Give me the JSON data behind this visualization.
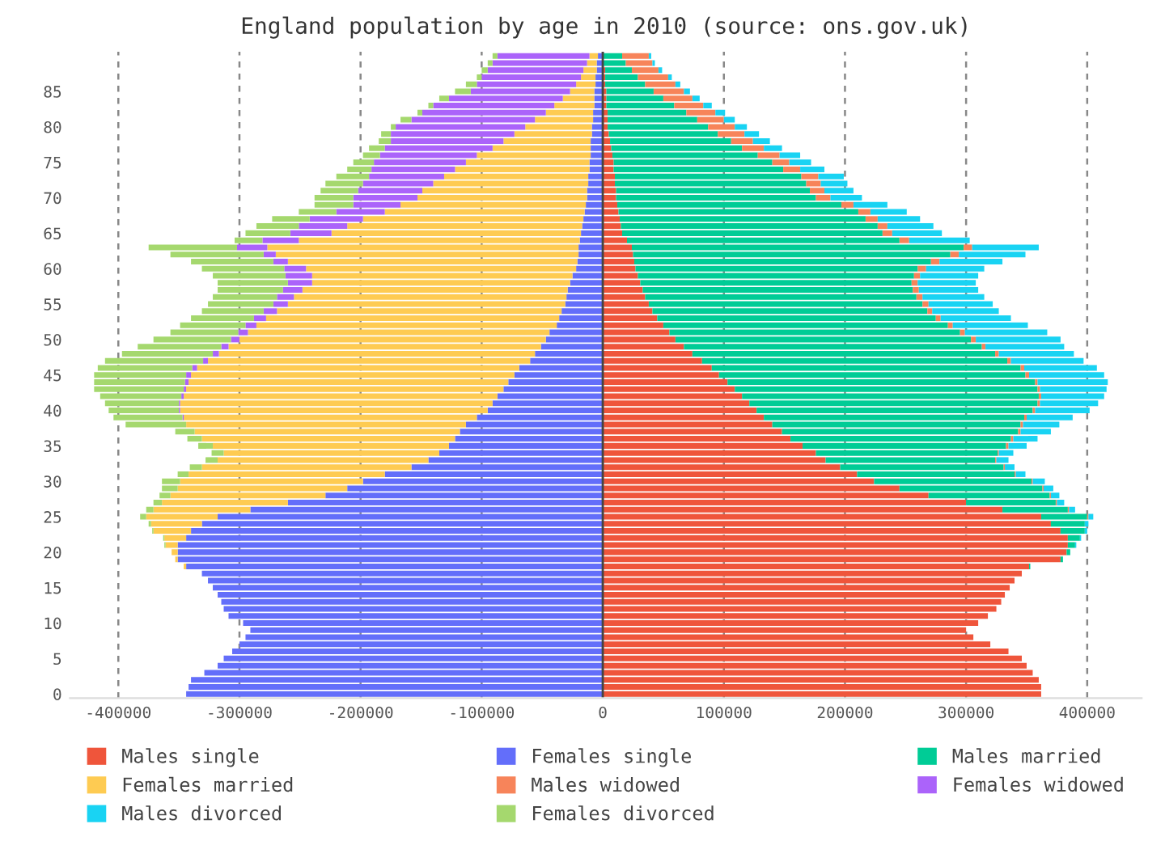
{
  "chart_data": {
    "type": "bar",
    "orientation": "horizontal",
    "stacked": true,
    "title": "England population by age in 2010 (source: ons.gov.uk)",
    "categories": [
      null,
      null,
      null,
      null,
      null,
      "85",
      null,
      null,
      null,
      null,
      "80",
      null,
      null,
      null,
      null,
      "75",
      null,
      null,
      null,
      null,
      "70",
      null,
      null,
      null,
      null,
      "65",
      null,
      null,
      null,
      null,
      "60",
      null,
      null,
      null,
      null,
      "55",
      null,
      null,
      null,
      null,
      "50",
      null,
      null,
      null,
      null,
      "45",
      null,
      null,
      null,
      null,
      "40",
      null,
      null,
      null,
      null,
      "35",
      null,
      null,
      null,
      null,
      "30",
      null,
      null,
      null,
      null,
      "25",
      null,
      null,
      null,
      null,
      "20",
      null,
      null,
      null,
      null,
      "15",
      null,
      null,
      null,
      null,
      "10",
      null,
      null,
      null,
      null,
      "5",
      null,
      null,
      null,
      null,
      "0"
    ],
    "xlim": [
      -440000,
      445000
    ],
    "xticks": [
      -400000,
      -300000,
      -200000,
      -100000,
      0,
      100000,
      200000,
      300000,
      400000
    ],
    "grid": "x",
    "legend": "bottom",
    "ref_lines": [
      {
        "axis": "x",
        "value": 0,
        "color": "#444444"
      }
    ],
    "series": [
      {
        "name": "Males single",
        "color": "#ef553b",
        "values": [
          null,
          null,
          2000,
          2000,
          2000,
          3000,
          3000,
          3000,
          4000,
          4000,
          4000,
          5000,
          6000,
          7000,
          8000,
          9000,
          9000,
          10000,
          10000,
          11000,
          11000,
          12000,
          13000,
          14000,
          15000,
          16000,
          20000,
          24000,
          25000,
          26000,
          27000,
          29000,
          31000,
          33000,
          35000,
          38000,
          41000,
          45000,
          50000,
          55000,
          60000,
          67000,
          74000,
          82000,
          90000,
          96000,
          103000,
          109000,
          115000,
          121000,
          127000,
          133000,
          140000,
          148000,
          155000,
          165000,
          176000,
          184000,
          196000,
          210000,
          224000,
          245000,
          269000,
          300000,
          330000,
          362000,
          370000,
          378000,
          384000,
          384000,
          383000,
          378000,
          352000,
          346000,
          340000,
          336000,
          332000,
          329000,
          325000,
          318000,
          310000,
          300000,
          306000,
          320000,
          335000,
          346000,
          350000,
          355000,
          360000,
          362000,
          362000
        ]
      },
      {
        "name": "Females single",
        "color": "#636efa",
        "values": [
          -4000,
          -5000,
          -5000,
          -6000,
          -6000,
          -7000,
          -7000,
          -7000,
          -8000,
          -8000,
          -9000,
          -9000,
          -10000,
          -10000,
          -10000,
          -11000,
          -11000,
          -12000,
          -12000,
          -13000,
          -13000,
          -14000,
          -15000,
          -16000,
          -17000,
          -18000,
          -19000,
          -20000,
          -20000,
          -21000,
          -22000,
          -25000,
          -27000,
          -29000,
          -30000,
          -31000,
          -34000,
          -36000,
          -38000,
          -44000,
          -47000,
          -51000,
          -56000,
          -60000,
          -69000,
          -73000,
          -78000,
          -82000,
          -87000,
          -91000,
          -95000,
          -104000,
          -113000,
          -118000,
          -122000,
          -127000,
          -135000,
          -144000,
          -158000,
          -180000,
          -198000,
          -211000,
          -229000,
          -260000,
          -291000,
          -318000,
          -331000,
          -340000,
          -344000,
          -351000,
          -351000,
          -351000,
          -344000,
          -331000,
          -326000,
          -322000,
          -318000,
          -315000,
          -313000,
          -309000,
          -297000,
          -291000,
          -295000,
          -300000,
          -306000,
          -313000,
          -318000,
          -329000,
          -340000,
          -342000,
          -344000
        ]
      },
      {
        "name": "Males married",
        "color": "#00cc96",
        "values": [
          16000,
          19000,
          22000,
          27000,
          33000,
          39000,
          47000,
          56000,
          65000,
          74000,
          83000,
          90000,
          100000,
          108000,
          120000,
          131000,
          140000,
          154000,
          158000,
          160000,
          165000,
          185000,
          198000,
          203000,
          212000,
          215000,
          225000,
          274000,
          262000,
          245000,
          233000,
          228000,
          224000,
          223000,
          224000,
          226000,
          227000,
          230000,
          235000,
          240000,
          244000,
          246000,
          250000,
          252000,
          255000,
          253000,
          254000,
          250000,
          245000,
          238000,
          228000,
          215000,
          205000,
          195000,
          182000,
          168000,
          150000,
          140000,
          135000,
          130000,
          130000,
          118000,
          100000,
          74000,
          54000,
          38000,
          28000,
          20000,
          10000,
          6000,
          3000,
          2000,
          1000,
          0,
          0,
          0,
          0,
          0,
          0,
          0,
          0,
          0,
          0,
          0,
          0,
          0,
          0,
          0,
          0,
          0,
          0
        ]
      },
      {
        "name": "Females married",
        "color": "#fecb52",
        "values": [
          -7000,
          -8000,
          -11000,
          -12000,
          -16000,
          -20000,
          -26000,
          -33000,
          -39000,
          -48000,
          -55000,
          -64000,
          -72000,
          -81000,
          -94000,
          -102000,
          -111000,
          -119000,
          -128000,
          -136000,
          -140000,
          -153000,
          -165000,
          -182000,
          -194000,
          -206000,
          -232000,
          -257000,
          -250000,
          -239000,
          -223000,
          -215000,
          -213000,
          -219000,
          -225000,
          -229000,
          -235000,
          -242000,
          -248000,
          -249000,
          -253000,
          -258000,
          -261000,
          -266000,
          -266000,
          -267000,
          -264000,
          -262000,
          -259000,
          -258000,
          -254000,
          -242000,
          -231000,
          -219000,
          -209000,
          -195000,
          -178000,
          -174000,
          -173000,
          -162000,
          -151000,
          -140000,
          -128000,
          -104000,
          -80000,
          -59000,
          -42000,
          -31000,
          -18000,
          -10000,
          -5000,
          -2000,
          -2000,
          0,
          0,
          0,
          0,
          0,
          0,
          0,
          0,
          0,
          0,
          0,
          0,
          0,
          0,
          0,
          0,
          0,
          0
        ]
      },
      {
        "name": "Males widowed",
        "color": "#f7845a",
        "values": [
          22000,
          22000,
          22000,
          25000,
          25000,
          25000,
          24000,
          24000,
          24000,
          22000,
          22000,
          22000,
          18000,
          18000,
          18000,
          14000,
          14000,
          14000,
          12000,
          12000,
          12000,
          10000,
          10000,
          10000,
          8000,
          8000,
          8000,
          7000,
          7000,
          7000,
          7000,
          5000,
          5000,
          5000,
          5000,
          5000,
          4000,
          4000,
          4000,
          4000,
          4000,
          3000,
          3000,
          3000,
          3000,
          3000,
          2000,
          2000,
          2000,
          2000,
          2000,
          2000,
          2000,
          2000,
          2000,
          2000,
          1000,
          1000,
          1000,
          1000,
          1000,
          1000,
          1000,
          1000,
          1000,
          1000,
          0,
          0,
          0,
          0,
          0,
          0,
          0,
          0,
          0,
          0,
          0,
          0,
          0,
          0,
          0,
          0,
          0,
          0,
          0,
          0,
          0,
          0,
          0,
          0,
          0
        ]
      },
      {
        "name": "Females widowed",
        "color": "#ab63fa",
        "values": [
          -76000,
          -78000,
          -79000,
          -82000,
          -82000,
          -82000,
          -94000,
          -100000,
          -102000,
          -102000,
          -107000,
          -102000,
          -93000,
          -89000,
          -80000,
          -76000,
          -69000,
          -62000,
          -58000,
          -53000,
          -53000,
          -39000,
          -40000,
          -44000,
          -40000,
          -34000,
          -30000,
          -25000,
          -10000,
          -12000,
          -18000,
          -22000,
          -20000,
          -16000,
          -14000,
          -12000,
          -11000,
          -10000,
          -9000,
          -8000,
          -7000,
          -6000,
          -5000,
          -4000,
          -4000,
          -4000,
          -3000,
          -2000,
          -2000,
          -1000,
          -1000,
          -1000,
          0,
          0,
          0,
          0,
          0,
          0,
          0,
          0,
          0,
          0,
          0,
          0,
          0,
          0,
          0,
          0,
          0,
          0,
          0,
          0,
          0,
          0,
          0,
          0,
          0,
          0,
          0,
          0,
          0,
          0,
          0,
          0,
          0,
          0,
          0,
          0,
          0,
          0,
          0
        ]
      },
      {
        "name": "Males divorced",
        "color": "#19d3f3",
        "values": [
          2000,
          2000,
          3000,
          3000,
          4000,
          5000,
          6000,
          7000,
          8000,
          9000,
          10000,
          12000,
          14000,
          15000,
          17000,
          18000,
          20000,
          21000,
          22000,
          24000,
          26000,
          28000,
          30000,
          35000,
          38000,
          41000,
          50000,
          55000,
          55000,
          52000,
          48000,
          48000,
          48000,
          49000,
          51000,
          53000,
          55000,
          58000,
          62000,
          68000,
          70000,
          65000,
          62000,
          60000,
          60000,
          62000,
          58000,
          55000,
          52000,
          48000,
          45000,
          38000,
          30000,
          25000,
          20000,
          15000,
          12000,
          10000,
          8000,
          8000,
          10000,
          8000,
          7000,
          6000,
          5000,
          4000,
          3000,
          2000,
          1000,
          1000,
          0,
          0,
          0,
          0,
          0,
          0,
          0,
          0,
          0,
          0,
          0,
          0,
          0,
          0,
          0,
          0,
          0,
          0,
          0,
          0,
          0
        ]
      },
      {
        "name": "Females divorced",
        "color": "#a5d86e",
        "values": [
          -4000,
          -4000,
          -5000,
          -4000,
          -9000,
          -13000,
          -8000,
          -4000,
          -4000,
          -9000,
          -4000,
          -8000,
          -10000,
          -13000,
          -14000,
          -17000,
          -20000,
          -27000,
          -31000,
          -31000,
          -32000,
          -32000,
          -31000,
          -31000,
          -35000,
          -37000,
          -23000,
          -73000,
          -77000,
          -68000,
          -68000,
          -60000,
          -58000,
          -54000,
          -53000,
          -54000,
          -51000,
          -52000,
          -54000,
          -56000,
          -64000,
          -69000,
          -75000,
          -81000,
          -78000,
          -76000,
          -75000,
          -74000,
          -67000,
          -61000,
          -58000,
          -57000,
          -50000,
          -16000,
          -12000,
          -12000,
          -10000,
          -10000,
          -10000,
          -9000,
          -15000,
          -13000,
          -9000,
          -7000,
          -6000,
          -5000,
          -2000,
          -1000,
          -1000,
          -1000,
          0,
          0,
          0,
          0,
          0,
          0,
          0,
          0,
          0,
          0,
          0,
          0,
          0,
          0,
          0,
          0,
          0,
          0,
          0,
          0,
          0
        ]
      }
    ]
  }
}
